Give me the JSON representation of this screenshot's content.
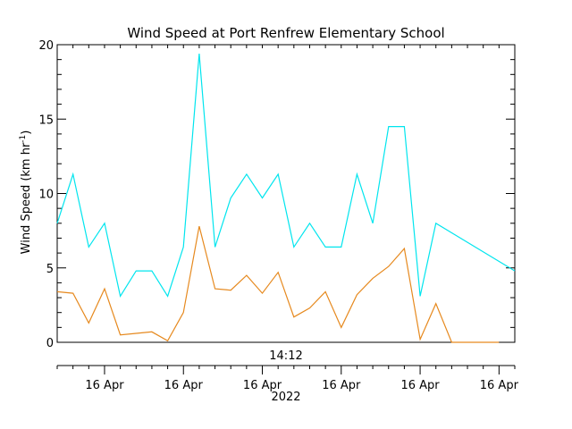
{
  "chart_data": {
    "type": "line",
    "title": "Wind Speed at Port Renfrew Elementary School",
    "ylabel": "Wind Speed (km hr",
    "ylabel_sup": "-1",
    "ylabel_close": ")",
    "ylim": [
      0,
      20
    ],
    "yticks": [
      0,
      5,
      10,
      15,
      20
    ],
    "xlim": [
      0,
      29
    ],
    "time_label": "14:12",
    "x_tick_labels": [
      "16 Apr",
      "16 Apr",
      "16 Apr",
      "16 Apr",
      "16 Apr",
      "16 Apr"
    ],
    "x_tick_positions": [
      3,
      8,
      13,
      18,
      23,
      28
    ],
    "year_label": "2022",
    "grid": false,
    "series": [
      {
        "color": "#00e5ee",
        "x": [
          0,
          1,
          2,
          3,
          4,
          5,
          6,
          7,
          8,
          9,
          10,
          11,
          12,
          13,
          14,
          15,
          16,
          17,
          18,
          19,
          20,
          21,
          22,
          23,
          24,
          29
        ],
        "y": [
          8.0,
          11.3,
          6.4,
          8.0,
          3.1,
          4.8,
          4.8,
          3.1,
          6.4,
          19.4,
          6.4,
          9.7,
          11.3,
          9.7,
          11.3,
          6.4,
          8.0,
          6.4,
          6.4,
          11.3,
          8.0,
          14.5,
          14.5,
          3.1,
          8.0,
          4.8
        ]
      },
      {
        "color": "#e6891e",
        "x": [
          0,
          1,
          2,
          3,
          4,
          5,
          6,
          7,
          8,
          9,
          10,
          11,
          12,
          13,
          14,
          15,
          16,
          17,
          18,
          19,
          20,
          21,
          22,
          23,
          24,
          25,
          28
        ],
        "y": [
          3.4,
          3.3,
          1.3,
          3.6,
          0.5,
          0.6,
          0.7,
          0.1,
          2.0,
          7.8,
          3.6,
          3.5,
          4.5,
          3.3,
          4.7,
          1.7,
          2.3,
          3.4,
          1.0,
          3.2,
          4.3,
          5.1,
          6.3,
          0.2,
          2.6,
          0.0,
          0.0
        ]
      }
    ]
  }
}
